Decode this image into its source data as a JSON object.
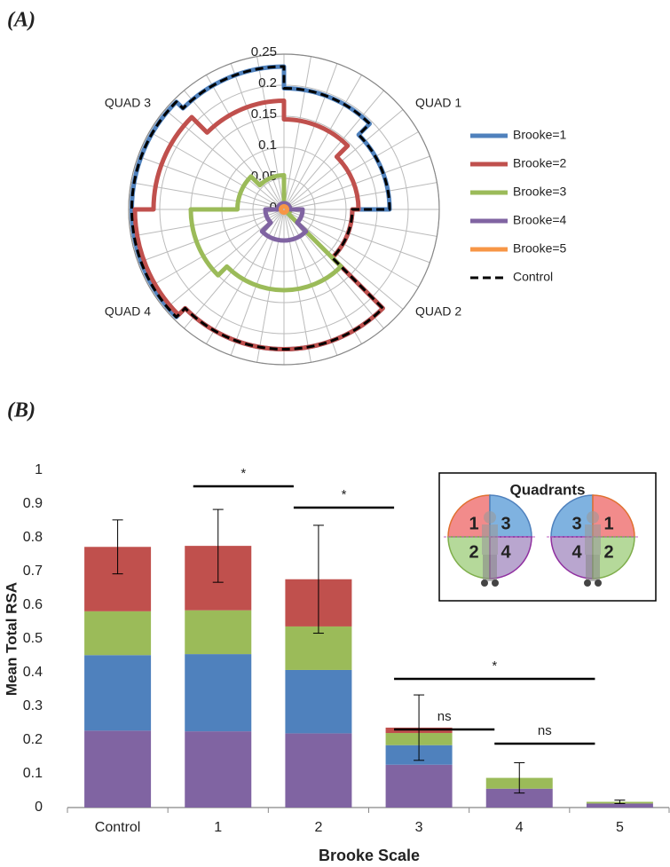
{
  "chart_data": [
    {
      "type": "radar",
      "panel_label": "(A)",
      "axis_labels": [
        "QUAD 1",
        "QUAD 2",
        "QUAD 4",
        "QUAD 3"
      ],
      "rlim": [
        0,
        0.25
      ],
      "rticks": [
        0,
        0.05,
        0.1,
        0.15,
        0.2,
        0.25
      ],
      "legend": "right",
      "series": [
        {
          "name": "Brooke=1",
          "color": "#4f81bd",
          "values": [
            0.195,
            0.17,
            0.11,
            0.225,
            0.225,
            0.245,
            0.245,
            0.23
          ]
        },
        {
          "name": "Brooke=2",
          "color": "#c0504d",
          "values": [
            0.145,
            0.12,
            0.11,
            0.225,
            0.225,
            0.24,
            0.21,
            0.175
          ]
        },
        {
          "name": "Brooke=3",
          "color": "#9bbb59",
          "values": [
            0.01,
            0.01,
            0.01,
            0.13,
            0.13,
            0.15,
            0.075,
            0.055
          ]
        },
        {
          "name": "Brooke=4",
          "color": "#8064a2",
          "values": [
            0.01,
            0.01,
            0.03,
            0.05,
            0.05,
            0.03,
            0.01,
            0.01
          ]
        },
        {
          "name": "Brooke=5",
          "color": "#f79646",
          "values": [
            0.005,
            0.005,
            0.005,
            0.005,
            0.005,
            0.005,
            0.005,
            0.005
          ]
        },
        {
          "name": "Control",
          "color": "#000000",
          "line_style": "dashed",
          "values": [
            0.195,
            0.17,
            0.11,
            0.225,
            0.225,
            0.245,
            0.245,
            0.23
          ]
        }
      ]
    },
    {
      "type": "stacked_bar",
      "panel_label": "(B)",
      "y_label": "Mean Total RSA",
      "x_label": "Brooke Scale",
      "categories": [
        "Control",
        "1",
        "2",
        "3",
        "4",
        "5"
      ],
      "ylim": [
        0,
        1
      ],
      "yticks": [
        0,
        0.1,
        0.2,
        0.3,
        0.4,
        0.5,
        0.6,
        0.7,
        0.8,
        0.9,
        1
      ],
      "grid": false,
      "series": [
        {
          "color": "#8064a2",
          "values": [
            0.228,
            0.226,
            0.22,
            0.127,
            0.056,
            0.012
          ]
        },
        {
          "color": "#4f81bd",
          "values": [
            0.224,
            0.229,
            0.188,
            0.058,
            0,
            0
          ]
        },
        {
          "color": "#9bbb59",
          "values": [
            0.13,
            0.13,
            0.129,
            0.036,
            0.032,
            0.005
          ]
        },
        {
          "color": "#c0504d",
          "values": [
            0.191,
            0.191,
            0.14,
            0.016,
            0,
            0
          ]
        }
      ],
      "errors": [
        0.08,
        0.108,
        0.16,
        0.097,
        0.045,
        0.005
      ],
      "annotations": [
        {
          "text": "*",
          "between": [
            "1",
            "2"
          ]
        },
        {
          "text": "*",
          "between": [
            "2",
            "3"
          ]
        },
        {
          "text": "*",
          "between": [
            "3",
            "5"
          ]
        },
        {
          "text": "ns",
          "between": [
            "3",
            "4"
          ]
        },
        {
          "text": "ns",
          "between": [
            "4",
            "5"
          ]
        }
      ],
      "inset": {
        "title": "Quadrants",
        "left_labels": [
          "1",
          "3",
          "2",
          "4"
        ],
        "right_labels": [
          "3",
          "1",
          "4",
          "2"
        ]
      }
    }
  ]
}
